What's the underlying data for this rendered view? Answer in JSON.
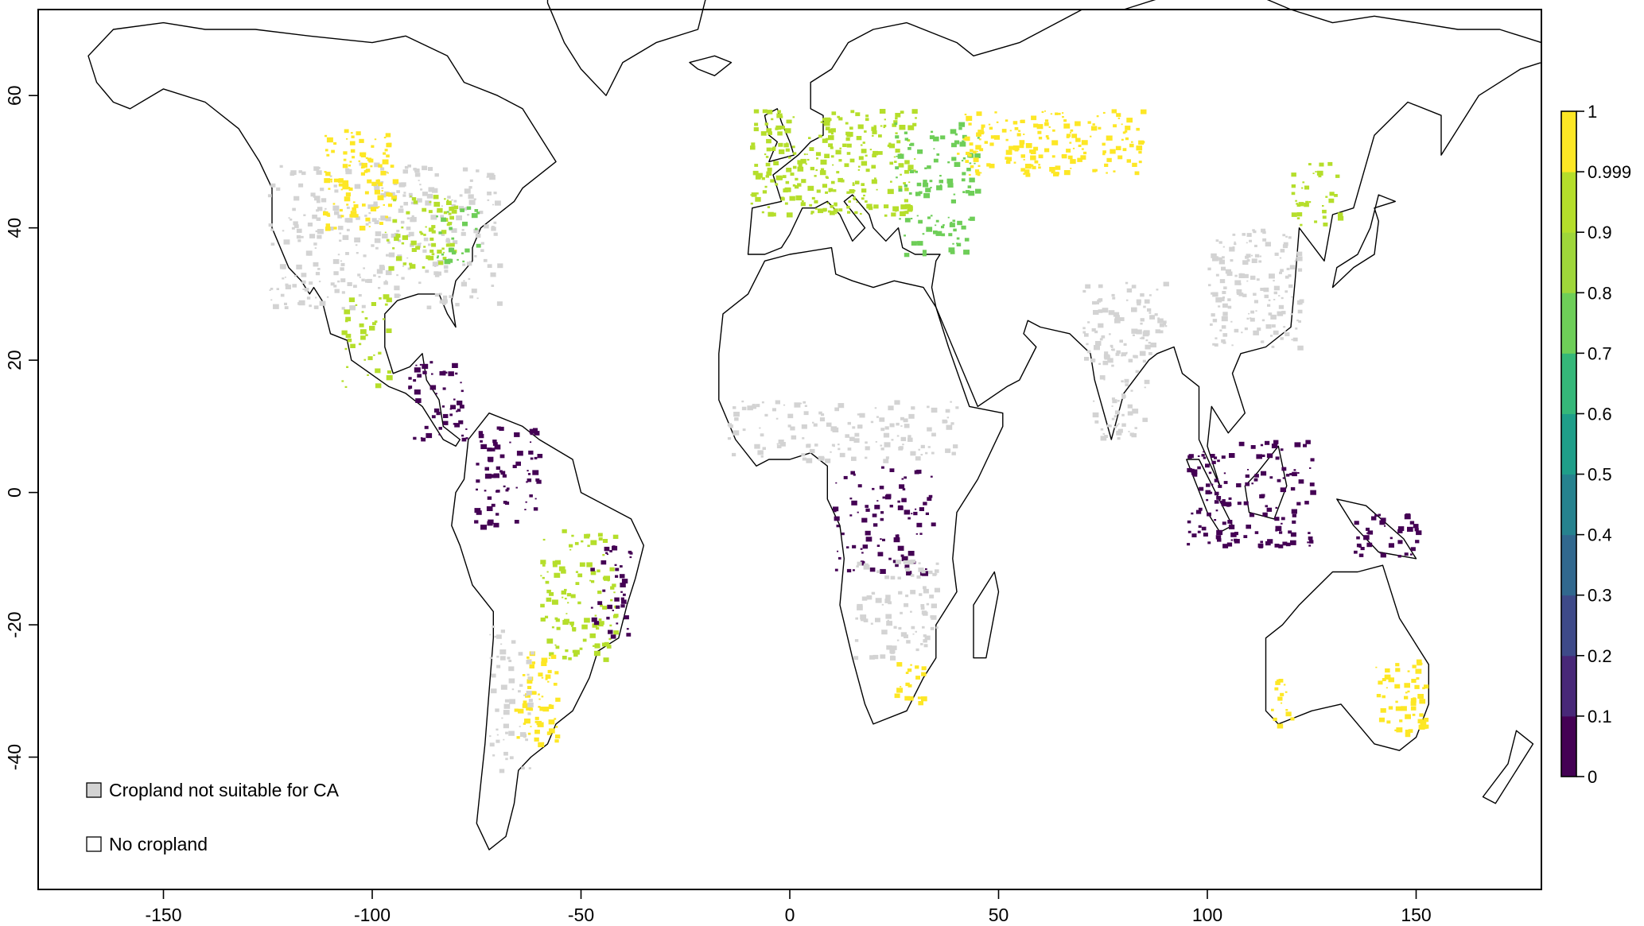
{
  "map": {
    "x_axis": {
      "range": [
        -180,
        180
      ],
      "ticks": [
        -150,
        -100,
        -50,
        0,
        50,
        100,
        150
      ],
      "tick_labels": [
        "-150",
        "-100",
        "-50",
        "0",
        "50",
        "100",
        "150"
      ]
    },
    "y_axis": {
      "range": [
        -60,
        73
      ],
      "ticks": [
        60,
        40,
        20,
        0,
        -20,
        -40
      ],
      "tick_labels": [
        "60",
        "40",
        "20",
        "0",
        "-20",
        "-40"
      ]
    },
    "colorbar": {
      "min": 0,
      "max": 1,
      "tick_labels": [
        "1",
        "0.999",
        "0.9",
        "0.8",
        "0.7",
        "0.6",
        "0.5",
        "0.4",
        "0.3",
        "0.2",
        "0.1",
        "0"
      ],
      "colors": [
        "#440154",
        "#482878",
        "#3e4a89",
        "#31688e",
        "#26828e",
        "#1f9e89",
        "#35b779",
        "#6ece58",
        "#9fd63a",
        "#b5de2b",
        "#fde725"
      ]
    },
    "legend": {
      "items": [
        {
          "label": "Cropland not suitable for CA",
          "fill": "#d3d3d3"
        },
        {
          "label": "No cropland",
          "fill": "#ffffff"
        }
      ]
    },
    "colors": {
      "gray": "#d3d3d3",
      "purple": "#440154",
      "blue": "#31688e",
      "teal": "#26828e",
      "green": "#6ece58",
      "yellowgreen": "#b5de2b",
      "yellow": "#fde725"
    }
  }
}
